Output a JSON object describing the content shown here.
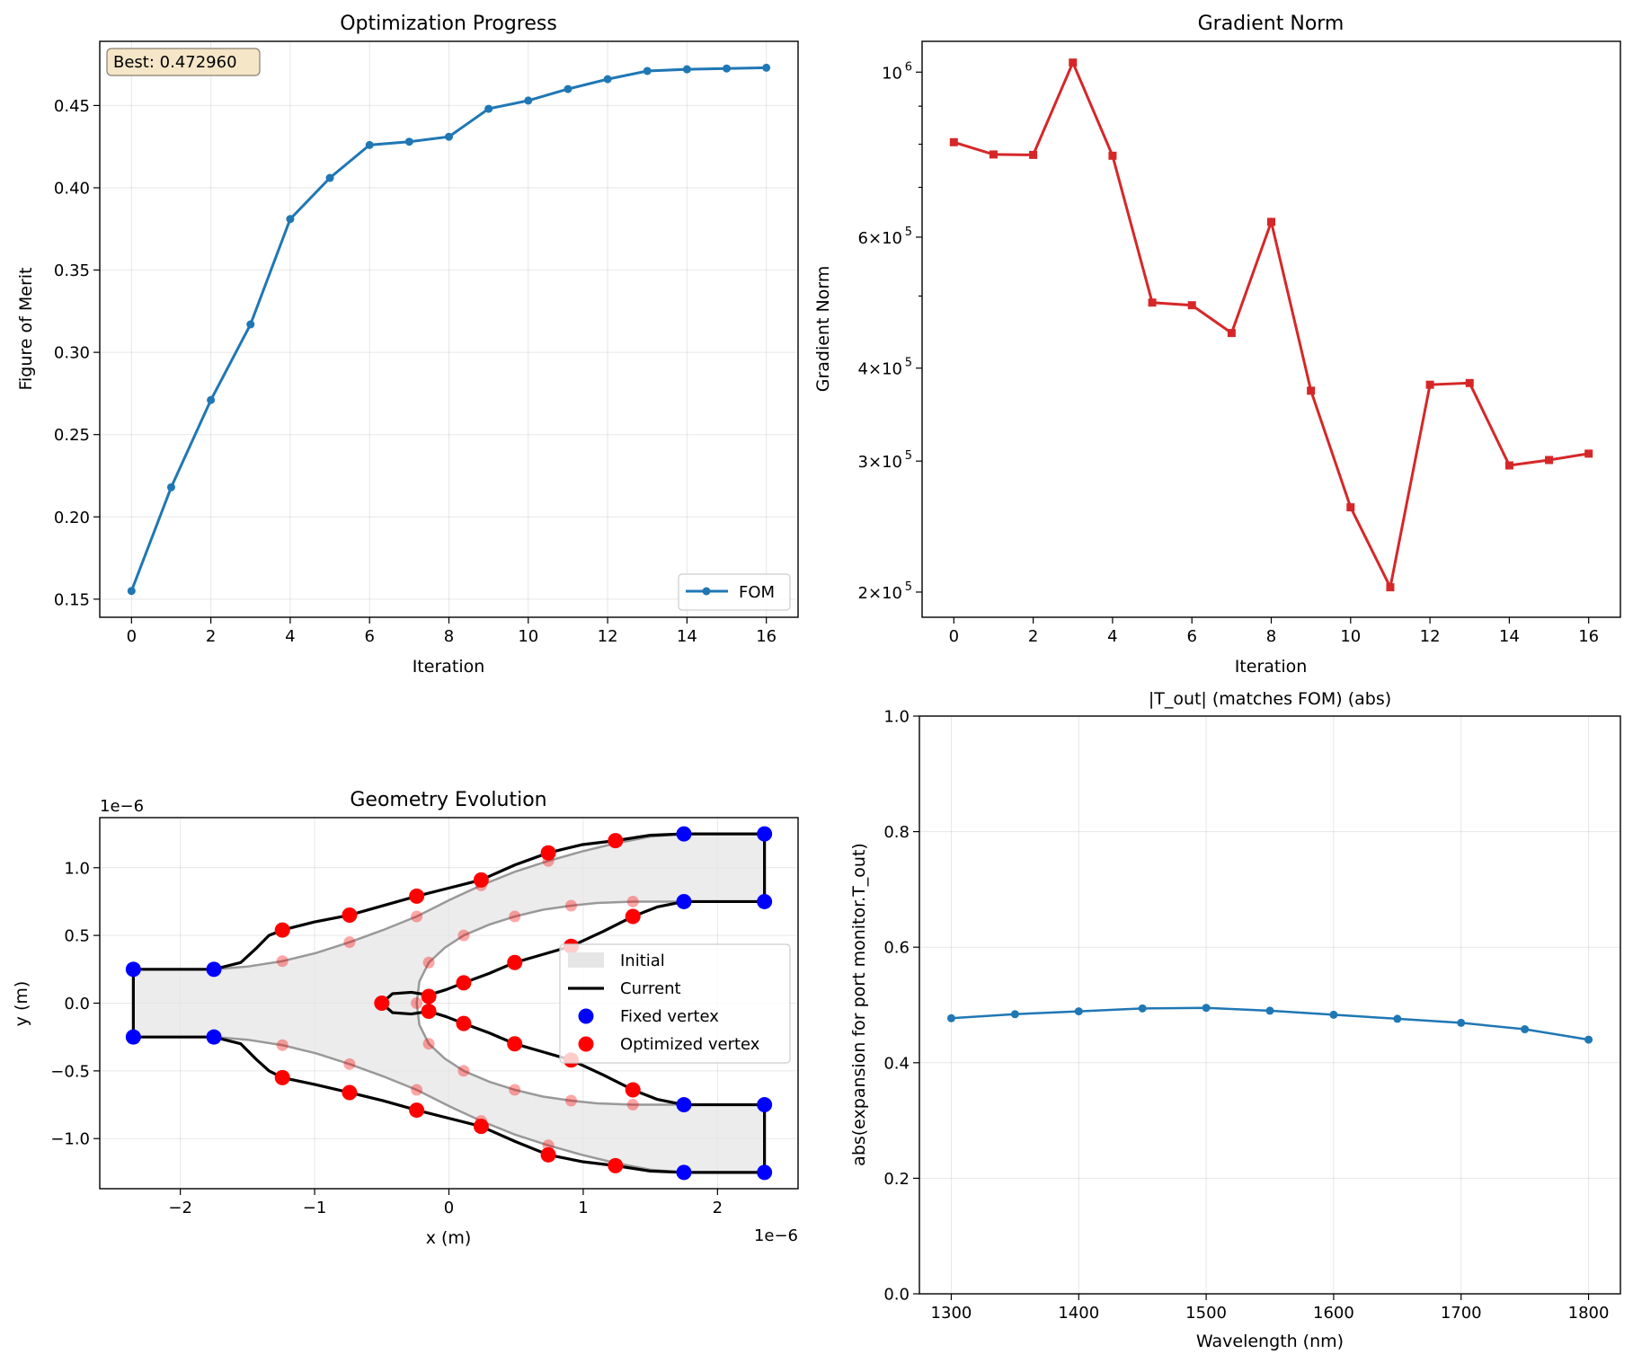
{
  "colors": {
    "fom": "#1f77b4",
    "grad": "#d62728",
    "trans": "#1f77b4",
    "fixed": "#0000ff",
    "optimized": "#ff0000",
    "initial_fill": "#e6e6e6",
    "initial_edge": "#999999",
    "current": "#000000",
    "annotation_box": "#f5e6c8"
  },
  "chart_data": [
    {
      "type": "line",
      "title": "Optimization Progress",
      "xlabel": "Iteration",
      "ylabel": "Figure of Merit",
      "x": [
        0,
        1,
        2,
        3,
        4,
        5,
        6,
        7,
        8,
        9,
        10,
        11,
        12,
        13,
        14,
        15,
        16
      ],
      "series": [
        {
          "name": "FOM",
          "values": [
            0.155,
            0.218,
            0.271,
            0.317,
            0.381,
            0.406,
            0.426,
            0.428,
            0.431,
            0.448,
            0.453,
            0.46,
            0.466,
            0.471,
            0.472,
            0.4725,
            0.47296
          ]
        }
      ],
      "xlim": [
        -0.8,
        16.8
      ],
      "ylim": [
        0.139,
        0.489
      ],
      "xticks": [
        0,
        2,
        4,
        6,
        8,
        10,
        12,
        14,
        16
      ],
      "yticks": [
        0.15,
        0.2,
        0.25,
        0.3,
        0.35,
        0.4,
        0.45
      ],
      "ytick_labels": [
        "0.15",
        "0.20",
        "0.25",
        "0.30",
        "0.35",
        "0.40",
        "0.45"
      ],
      "annotation": "Best: 0.472960",
      "legend": "lower-right",
      "grid": true
    },
    {
      "type": "line",
      "title": "Gradient Norm",
      "xlabel": "Iteration",
      "ylabel": "Gradient Norm",
      "log_y": true,
      "x": [
        0,
        1,
        2,
        3,
        4,
        5,
        6,
        7,
        8,
        9,
        10,
        11,
        12,
        13,
        14,
        15,
        16
      ],
      "series": [
        {
          "name": "",
          "values": [
            805000,
            775000,
            774000,
            1030000,
            772000,
            490000,
            486000,
            446000,
            629000,
            373000,
            260000,
            203000,
            380000,
            382000,
            296000,
            301000,
            307000
          ]
        }
      ],
      "xlim": [
        -0.8,
        16.8
      ],
      "ylim": [
        185000,
        1100000
      ],
      "xticks": [
        0,
        2,
        4,
        6,
        8,
        10,
        12,
        14,
        16
      ],
      "yticks": [
        200000,
        300000,
        400000,
        600000,
        1000000
      ],
      "ytick_labels": [
        {
          "base": "2×10",
          "exp": "5"
        },
        {
          "base": "3×10",
          "exp": "5"
        },
        {
          "base": "4×10",
          "exp": "5"
        },
        {
          "base": "6×10",
          "exp": "5"
        },
        {
          "base": "10",
          "exp": "6"
        }
      ],
      "minor_yticks": [
        500000,
        700000,
        800000,
        900000
      ],
      "grid": false
    },
    {
      "type": "scatter",
      "title": "Geometry Evolution",
      "xlabel": "x (m)",
      "ylabel": "y (m)",
      "x_offset_label": "1e−6",
      "y_offset_label": "1e−6",
      "xlim": [
        -2.6,
        2.6
      ],
      "ylim": [
        -1.37,
        1.37
      ],
      "xticks": [
        -2,
        -1,
        0,
        1,
        2
      ],
      "xtick_labels": [
        "−2",
        "−1",
        "0",
        "1",
        "2"
      ],
      "yticks": [
        -1.0,
        -0.5,
        0.0,
        0.5,
        1.0
      ],
      "ytick_labels": [
        "−1.0",
        "−0.5",
        "0.0",
        "0.5",
        "1.0"
      ],
      "legend": "center-right",
      "legend_entries": [
        "Initial",
        "Current",
        "Fixed vertex",
        "Optimized vertex"
      ],
      "grid": true,
      "fixed_vertices": [
        [
          -2.35,
          0.25
        ],
        [
          -1.75,
          0.25
        ],
        [
          -2.35,
          -0.25
        ],
        [
          -1.75,
          -0.25
        ],
        [
          1.75,
          1.25
        ],
        [
          2.35,
          1.25
        ],
        [
          1.75,
          0.75
        ],
        [
          2.35,
          0.75
        ],
        [
          1.75,
          -0.75
        ],
        [
          2.35,
          -0.75
        ],
        [
          1.75,
          -1.25
        ],
        [
          2.35,
          -1.25
        ]
      ],
      "optimized_vertices": [
        [
          -1.24,
          0.54
        ],
        [
          -0.74,
          0.65
        ],
        [
          -0.24,
          0.79
        ],
        [
          0.24,
          0.91
        ],
        [
          0.74,
          1.11
        ],
        [
          1.24,
          1.2
        ],
        [
          -1.24,
          -0.55
        ],
        [
          -0.74,
          -0.66
        ],
        [
          -0.24,
          -0.79
        ],
        [
          0.24,
          -0.91
        ],
        [
          0.74,
          -1.12
        ],
        [
          1.24,
          -1.2
        ],
        [
          -0.5,
          0.0
        ],
        [
          -0.15,
          0.05
        ],
        [
          0.11,
          0.15
        ],
        [
          0.49,
          0.3
        ],
        [
          0.91,
          0.42
        ],
        [
          1.37,
          0.64
        ],
        [
          -0.15,
          -0.06
        ],
        [
          0.11,
          -0.15
        ],
        [
          0.49,
          -0.3
        ],
        [
          0.91,
          -0.42
        ],
        [
          1.37,
          -0.64
        ]
      ],
      "initial_vertices": [
        [
          -1.24,
          0.31
        ],
        [
          -0.74,
          0.45
        ],
        [
          -0.24,
          0.64
        ],
        [
          0.24,
          0.87
        ],
        [
          0.74,
          1.05
        ],
        [
          -1.24,
          -0.31
        ],
        [
          -0.74,
          -0.45
        ],
        [
          -0.24,
          -0.64
        ],
        [
          0.24,
          -0.87
        ],
        [
          0.74,
          -1.05
        ],
        [
          -0.24,
          0.0
        ],
        [
          -0.15,
          0.3
        ],
        [
          0.11,
          0.5
        ],
        [
          0.49,
          0.64
        ],
        [
          0.91,
          0.72
        ],
        [
          1.37,
          0.75
        ],
        [
          -0.15,
          -0.3
        ],
        [
          0.11,
          -0.5
        ],
        [
          0.49,
          -0.64
        ],
        [
          0.91,
          -0.72
        ],
        [
          1.37,
          -0.75
        ]
      ],
      "initial_outline": [
        [
          -2.35,
          0.25
        ],
        [
          -1.75,
          0.25
        ],
        [
          -1.5,
          0.27
        ],
        [
          -1.24,
          0.31
        ],
        [
          -0.99,
          0.37
        ],
        [
          -0.74,
          0.45
        ],
        [
          -0.49,
          0.54
        ],
        [
          -0.24,
          0.64
        ],
        [
          0.0,
          0.76
        ],
        [
          0.24,
          0.87
        ],
        [
          0.49,
          0.97
        ],
        [
          0.74,
          1.05
        ],
        [
          0.99,
          1.12
        ],
        [
          1.24,
          1.18
        ],
        [
          1.5,
          1.23
        ],
        [
          1.75,
          1.25
        ],
        [
          2.35,
          1.25
        ],
        [
          2.35,
          0.75
        ],
        [
          1.75,
          0.75
        ],
        [
          1.37,
          0.75
        ],
        [
          1.1,
          0.74
        ],
        [
          0.91,
          0.72
        ],
        [
          0.7,
          0.69
        ],
        [
          0.49,
          0.64
        ],
        [
          0.3,
          0.58
        ],
        [
          0.11,
          0.5
        ],
        [
          -0.03,
          0.41
        ],
        [
          -0.15,
          0.3
        ],
        [
          -0.22,
          0.16
        ],
        [
          -0.24,
          0.0
        ],
        [
          -0.22,
          -0.16
        ],
        [
          -0.15,
          -0.3
        ],
        [
          -0.03,
          -0.41
        ],
        [
          0.11,
          -0.5
        ],
        [
          0.3,
          -0.58
        ],
        [
          0.49,
          -0.64
        ],
        [
          0.7,
          -0.69
        ],
        [
          0.91,
          -0.72
        ],
        [
          1.1,
          -0.74
        ],
        [
          1.37,
          -0.75
        ],
        [
          1.75,
          -0.75
        ],
        [
          2.35,
          -0.75
        ],
        [
          2.35,
          -1.25
        ],
        [
          1.75,
          -1.25
        ],
        [
          1.5,
          -1.23
        ],
        [
          1.24,
          -1.18
        ],
        [
          0.99,
          -1.12
        ],
        [
          0.74,
          -1.05
        ],
        [
          0.49,
          -0.97
        ],
        [
          0.24,
          -0.87
        ],
        [
          0.0,
          -0.76
        ],
        [
          -0.24,
          -0.64
        ],
        [
          -0.49,
          -0.54
        ],
        [
          -0.74,
          -0.45
        ],
        [
          -0.99,
          -0.37
        ],
        [
          -1.24,
          -0.31
        ],
        [
          -1.5,
          -0.27
        ],
        [
          -1.75,
          -0.25
        ],
        [
          -2.35,
          -0.25
        ]
      ],
      "current_outline": [
        [
          -2.35,
          0.25
        ],
        [
          -1.75,
          0.25
        ],
        [
          -1.55,
          0.3
        ],
        [
          -1.44,
          0.4
        ],
        [
          -1.34,
          0.5
        ],
        [
          -1.24,
          0.54
        ],
        [
          -1.0,
          0.6
        ],
        [
          -0.74,
          0.65
        ],
        [
          -0.49,
          0.72
        ],
        [
          -0.24,
          0.79
        ],
        [
          0.0,
          0.85
        ],
        [
          0.24,
          0.91
        ],
        [
          0.49,
          1.02
        ],
        [
          0.74,
          1.11
        ],
        [
          0.99,
          1.17
        ],
        [
          1.24,
          1.2
        ],
        [
          1.5,
          1.24
        ],
        [
          1.75,
          1.25
        ],
        [
          2.35,
          1.25
        ],
        [
          2.35,
          0.75
        ],
        [
          1.75,
          0.75
        ],
        [
          1.55,
          0.71
        ],
        [
          1.37,
          0.64
        ],
        [
          1.15,
          0.53
        ],
        [
          0.91,
          0.42
        ],
        [
          0.7,
          0.36
        ],
        [
          0.49,
          0.3
        ],
        [
          0.3,
          0.22
        ],
        [
          0.11,
          0.15
        ],
        [
          -0.02,
          0.1
        ],
        [
          -0.15,
          0.06
        ],
        [
          -0.28,
          0.08
        ],
        [
          -0.42,
          0.07
        ],
        [
          -0.5,
          0.0
        ],
        [
          -0.42,
          -0.07
        ],
        [
          -0.28,
          -0.08
        ],
        [
          -0.15,
          -0.06
        ],
        [
          -0.02,
          -0.1
        ],
        [
          0.11,
          -0.15
        ],
        [
          0.3,
          -0.22
        ],
        [
          0.49,
          -0.3
        ],
        [
          0.7,
          -0.36
        ],
        [
          0.91,
          -0.42
        ],
        [
          1.15,
          -0.53
        ],
        [
          1.37,
          -0.64
        ],
        [
          1.55,
          -0.71
        ],
        [
          1.75,
          -0.75
        ],
        [
          2.35,
          -0.75
        ],
        [
          2.35,
          -1.25
        ],
        [
          1.75,
          -1.25
        ],
        [
          1.5,
          -1.24
        ],
        [
          1.24,
          -1.2
        ],
        [
          0.99,
          -1.17
        ],
        [
          0.74,
          -1.12
        ],
        [
          0.49,
          -1.02
        ],
        [
          0.24,
          -0.91
        ],
        [
          0.0,
          -0.85
        ],
        [
          -0.24,
          -0.79
        ],
        [
          -0.49,
          -0.72
        ],
        [
          -0.74,
          -0.66
        ],
        [
          -1.0,
          -0.6
        ],
        [
          -1.24,
          -0.55
        ],
        [
          -1.34,
          -0.5
        ],
        [
          -1.44,
          -0.41
        ],
        [
          -1.55,
          -0.3
        ],
        [
          -1.75,
          -0.25
        ],
        [
          -2.35,
          -0.25
        ]
      ]
    },
    {
      "type": "line",
      "title": "|T_out| (matches FOM) (abs)",
      "xlabel": "Wavelength (nm)",
      "ylabel": "abs(expansion for port monitor.T_out)",
      "x": [
        1300,
        1350,
        1400,
        1450,
        1500,
        1550,
        1600,
        1650,
        1700,
        1750,
        1800
      ],
      "series": [
        {
          "name": "",
          "values": [
            0.477,
            0.484,
            0.489,
            0.494,
            0.495,
            0.49,
            0.483,
            0.476,
            0.469,
            0.458,
            0.44
          ]
        }
      ],
      "xlim": [
        1275,
        1825
      ],
      "ylim": [
        0,
        1
      ],
      "xticks": [
        1300,
        1400,
        1500,
        1600,
        1700,
        1800
      ],
      "yticks": [
        0.0,
        0.2,
        0.4,
        0.6,
        0.8,
        1.0
      ],
      "ytick_labels": [
        "0.0",
        "0.2",
        "0.4",
        "0.6",
        "0.8",
        "1.0"
      ],
      "grid": true
    }
  ]
}
